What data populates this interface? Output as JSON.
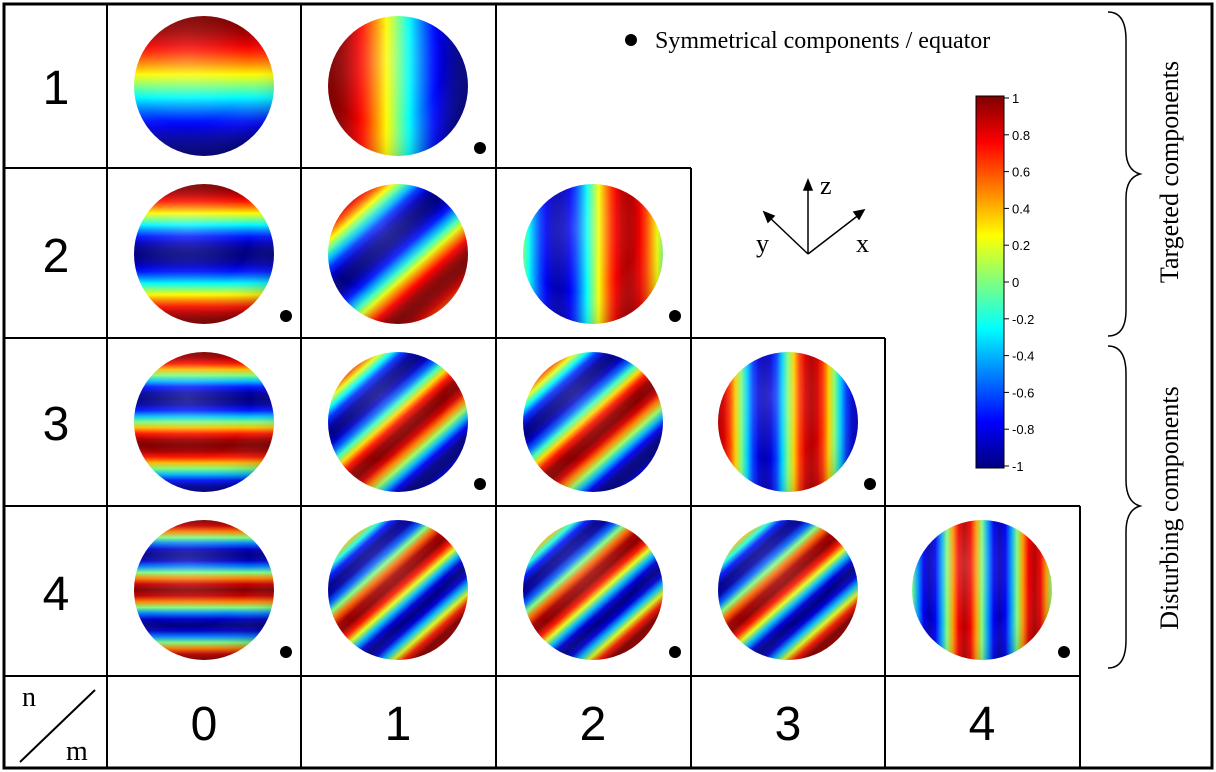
{
  "legend": {
    "symmetric_label": "Symmetrical components / equator"
  },
  "side_labels": {
    "targeted": "Targeted components",
    "disturbing": "Disturbing components"
  },
  "axes": {
    "z": "z",
    "y": "y",
    "x": "x"
  },
  "corner": {
    "n": "n",
    "m": "m"
  },
  "row_labels": [
    "1",
    "2",
    "3",
    "4"
  ],
  "col_labels": [
    "0",
    "1",
    "2",
    "3",
    "4"
  ],
  "colorbar": {
    "min": -1,
    "max": 1,
    "ticks": [
      "1",
      "0.8",
      "0.6",
      "0.4",
      "0.2",
      "0",
      "-0.2",
      "-0.4",
      "-0.6",
      "-0.8",
      "-1"
    ],
    "colormap": [
      "#00007f",
      "#0000ff",
      "#007fff",
      "#00ffff",
      "#7fff7f",
      "#ffff00",
      "#ff7f00",
      "#ff0000",
      "#7f0000"
    ]
  },
  "spheres": [
    {
      "n": 1,
      "m": 0,
      "symmetric": false
    },
    {
      "n": 1,
      "m": 1,
      "symmetric": true
    },
    {
      "n": 2,
      "m": 0,
      "symmetric": true
    },
    {
      "n": 2,
      "m": 1,
      "symmetric": false
    },
    {
      "n": 2,
      "m": 2,
      "symmetric": true
    },
    {
      "n": 3,
      "m": 0,
      "symmetric": false
    },
    {
      "n": 3,
      "m": 1,
      "symmetric": true
    },
    {
      "n": 3,
      "m": 2,
      "symmetric": false
    },
    {
      "n": 3,
      "m": 3,
      "symmetric": true
    },
    {
      "n": 4,
      "m": 0,
      "symmetric": true
    },
    {
      "n": 4,
      "m": 1,
      "symmetric": false
    },
    {
      "n": 4,
      "m": 2,
      "symmetric": true
    },
    {
      "n": 4,
      "m": 3,
      "symmetric": false
    },
    {
      "n": 4,
      "m": 4,
      "symmetric": true
    }
  ]
}
